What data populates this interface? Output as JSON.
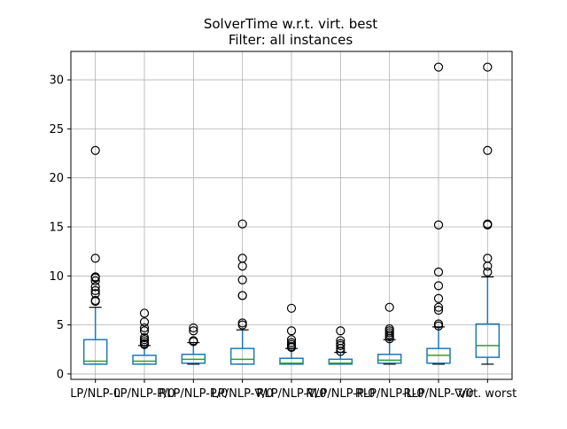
{
  "chart_data": {
    "type": "box",
    "title": "SolverTime w.r.t. virt. best",
    "subtitle": "Filter: all instances",
    "xlabel": "",
    "ylabel": "",
    "ylim": [
      -0.55,
      32.9
    ],
    "yticks": [
      0,
      5,
      10,
      15,
      20,
      25,
      30
    ],
    "grid": true,
    "categories": [
      "LP/NLP-0",
      "LP/NLP-P/0",
      "RLP/NLP-P/0",
      "LP/NLP-∇/0",
      "RLP/NLP-∇/0",
      "RLP/NLP-P-0",
      "RLP/NLP-L-0",
      "RLP/NLP-∇/0 ",
      "virt. worst"
    ],
    "series": [
      {
        "whislo": 1.0,
        "q1": 1.0,
        "median": 1.3,
        "q3": 3.5,
        "whishi": 6.8,
        "fliers": [
          7.4,
          7.5,
          8.2,
          8.5,
          8.9,
          9.5,
          9.8,
          9.9,
          11.8,
          22.8
        ]
      },
      {
        "whislo": 1.0,
        "q1": 1.0,
        "median": 1.3,
        "q3": 1.9,
        "whishi": 2.9,
        "fliers": [
          3.0,
          3.1,
          3.3,
          3.5,
          3.7,
          4.4,
          4.7,
          5.3,
          6.2
        ]
      },
      {
        "whislo": 1.0,
        "q1": 1.1,
        "median": 1.5,
        "q3": 2.0,
        "whishi": 3.2,
        "fliers": [
          3.3,
          3.4,
          4.4,
          4.7
        ]
      },
      {
        "whislo": 1.0,
        "q1": 1.0,
        "median": 1.5,
        "q3": 2.6,
        "whishi": 4.5,
        "fliers": [
          5.0,
          5.2,
          8.0,
          8.0,
          9.6,
          11.0,
          11.8,
          15.3
        ]
      },
      {
        "whislo": 1.0,
        "q1": 1.0,
        "median": 1.1,
        "q3": 1.6,
        "whishi": 2.6,
        "fliers": [
          2.7,
          2.8,
          3.0,
          3.2,
          3.5,
          4.4,
          6.7
        ]
      },
      {
        "whislo": 1.0,
        "q1": 1.0,
        "median": 1.1,
        "q3": 1.5,
        "whishi": 2.2,
        "fliers": [
          2.3,
          2.6,
          2.9,
          3.1,
          3.4,
          4.4
        ]
      },
      {
        "whislo": 1.0,
        "q1": 1.1,
        "median": 1.4,
        "q3": 2.0,
        "whishi": 3.5,
        "fliers": [
          3.6,
          3.8,
          4.0,
          4.2,
          4.4,
          4.6,
          6.8
        ]
      },
      {
        "whislo": 1.0,
        "q1": 1.1,
        "median": 1.9,
        "q3": 2.6,
        "whishi": 4.8,
        "fliers": [
          4.9,
          5.1,
          6.5,
          6.8,
          7.7,
          9.0,
          10.4,
          15.2,
          31.3
        ]
      },
      {
        "whislo": 1.0,
        "q1": 1.7,
        "median": 2.9,
        "q3": 5.1,
        "whishi": 9.9,
        "fliers": [
          10.4,
          11.0,
          11.8,
          15.2,
          15.3,
          22.8,
          31.3
        ]
      }
    ],
    "colors": {
      "box": "#1f77b4",
      "median": "#2ca02c",
      "grid": "#b0b0b0"
    }
  }
}
